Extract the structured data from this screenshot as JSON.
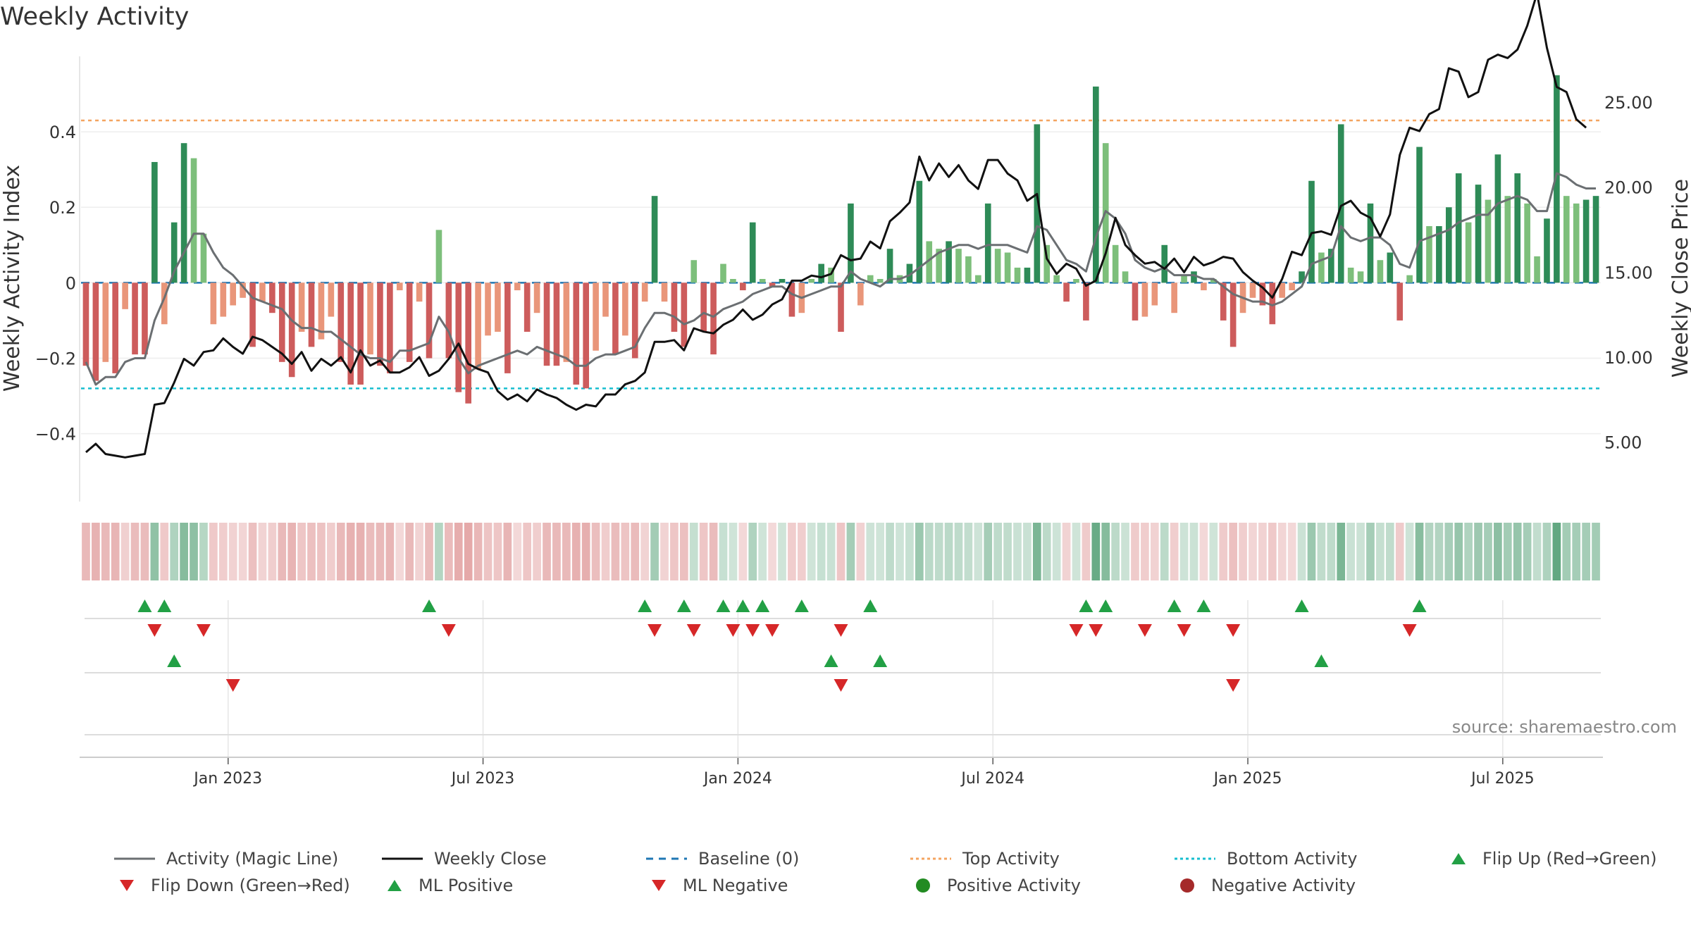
{
  "title": "Weekly Activity",
  "source_text": "source: sharemaestro.com",
  "colors": {
    "pos_strong": "#2e8b57",
    "pos_light": "#7dbf7b",
    "neg_strong": "#cd5c5c",
    "neg_light": "#e9967a",
    "magic_line": "#6b6f72",
    "close": "#111111",
    "baseline": "#1f77b4",
    "top": "#f4a460",
    "bottom": "#17becf",
    "flip_up": "#22a045",
    "flip_down": "#d62728",
    "positive": "#228b22",
    "negative": "#a52a2a"
  },
  "legend": [
    {
      "name": "legend-activity-magic-line",
      "label": "Activity (Magic Line)",
      "kind": "line",
      "color": "#6b6f72",
      "dash": ""
    },
    {
      "name": "legend-weekly-close",
      "label": "Weekly Close",
      "kind": "line",
      "color": "#111111",
      "dash": ""
    },
    {
      "name": "legend-baseline",
      "label": "Baseline (0)",
      "kind": "line",
      "color": "#1f77b4",
      "dash": "10,8"
    },
    {
      "name": "legend-top-activity",
      "label": "Top Activity",
      "kind": "line",
      "color": "#f4a460",
      "dash": "4,4"
    },
    {
      "name": "legend-bottom-activity",
      "label": "Bottom Activity",
      "kind": "line",
      "color": "#17becf",
      "dash": "4,4"
    },
    {
      "name": "legend-flip-up",
      "label": "Flip Up (Red→Green)",
      "kind": "tri-up",
      "color": "#22a045",
      "dash": ""
    },
    {
      "name": "legend-flip-down",
      "label": "Flip Down (Green→Red)",
      "kind": "tri-down",
      "color": "#d62728",
      "dash": ""
    },
    {
      "name": "legend-ml-positive",
      "label": "ML Positive",
      "kind": "tri-up",
      "color": "#22a045",
      "dash": ""
    },
    {
      "name": "legend-ml-negative",
      "label": "ML Negative",
      "kind": "tri-down",
      "color": "#d62728",
      "dash": ""
    },
    {
      "name": "legend-positive-activity",
      "label": "Positive Activity",
      "kind": "dot",
      "color": "#228b22",
      "dash": ""
    },
    {
      "name": "legend-negative-activity",
      "label": "Negative Activity",
      "kind": "dot",
      "color": "#a52a2a",
      "dash": ""
    }
  ],
  "chart_data": {
    "type": "bar",
    "title": "Weekly Activity",
    "ylabel": "Weekly Activity Index",
    "ylabel_right": "Weekly Close Price",
    "ylim": [
      -0.58,
      0.6
    ],
    "ylim_right": [
      1.5,
      27.7
    ],
    "yticks": [
      -0.4,
      -0.2,
      0,
      0.2,
      0.4
    ],
    "ytick_labels": [
      "−0.4",
      "−0.2",
      "0",
      "0.2",
      "0.4"
    ],
    "yticks_right": [
      5,
      10,
      15,
      20,
      25
    ],
    "ytick_labels_right": [
      "5.00",
      "10.00",
      "15.00",
      "20.00",
      "25.00"
    ],
    "top_activity": 0.43,
    "bottom_activity": -0.28,
    "x_start_week": 0,
    "x_end_week": 153,
    "x_ticks": [
      {
        "week": 14.5,
        "label": "Jan 2023"
      },
      {
        "week": 40.5,
        "label": "Jul 2023"
      },
      {
        "week": 66.5,
        "label": "Jan 2024"
      },
      {
        "week": 92.5,
        "label": "Jul 2024"
      },
      {
        "week": 118.5,
        "label": "Jan 2025"
      },
      {
        "week": 144.5,
        "label": "Jul 2025"
      }
    ],
    "activity": [
      -0.22,
      -0.26,
      -0.21,
      -0.24,
      -0.07,
      -0.19,
      -0.19,
      0.32,
      -0.11,
      0.16,
      0.37,
      0.33,
      0.13,
      -0.11,
      -0.09,
      -0.06,
      -0.04,
      -0.17,
      -0.05,
      -0.08,
      -0.21,
      -0.25,
      -0.13,
      -0.17,
      -0.15,
      -0.09,
      -0.21,
      -0.27,
      -0.27,
      -0.19,
      -0.22,
      -0.24,
      -0.02,
      -0.21,
      -0.05,
      -0.2,
      0.14,
      -0.2,
      -0.29,
      -0.32,
      -0.23,
      -0.14,
      -0.13,
      -0.24,
      -0.02,
      -0.13,
      -0.08,
      -0.22,
      -0.22,
      -0.21,
      -0.27,
      -0.28,
      -0.18,
      -0.09,
      -0.19,
      -0.14,
      -0.2,
      -0.05,
      0.23,
      -0.05,
      -0.13,
      -0.17,
      0.06,
      -0.13,
      -0.19,
      0.05,
      0.01,
      -0.02,
      0.16,
      0.01,
      -0.01,
      0.01,
      -0.09,
      -0.08,
      0.01,
      0.05,
      0.04,
      -0.13,
      0.21,
      -0.06,
      0.02,
      0.01,
      0.09,
      0.02,
      0.05,
      0.27,
      0.11,
      0.09,
      0.11,
      0.09,
      0.07,
      0.02,
      0.21,
      0.09,
      0.08,
      0.04,
      0.04,
      0.42,
      0.1,
      0.02,
      -0.05,
      0.01,
      -0.1,
      0.52,
      0.37,
      0.1,
      0.03,
      -0.1,
      -0.09,
      -0.06,
      0.1,
      -0.08,
      0.02,
      0.03,
      -0.02,
      0.01,
      -0.1,
      -0.17,
      -0.08,
      -0.04,
      -0.06,
      -0.11,
      -0.04,
      -0.02,
      0.03,
      0.27,
      0.08,
      0.09,
      0.42,
      0.04,
      0.03,
      0.21,
      0.06,
      0.08,
      -0.1,
      0.02,
      0.36,
      0.15,
      0.15,
      0.2,
      0.29,
      0.16,
      0.26,
      0.22,
      0.34,
      0.23,
      0.29,
      0.21,
      0.07,
      0.17,
      0.55,
      0.23,
      0.21,
      0.22,
      0.23
    ],
    "magic_line": [
      -0.21,
      -0.27,
      -0.25,
      -0.25,
      -0.21,
      -0.2,
      -0.2,
      -0.1,
      -0.04,
      0.03,
      0.08,
      0.13,
      0.13,
      0.08,
      0.04,
      0.02,
      -0.01,
      -0.04,
      -0.05,
      -0.06,
      -0.07,
      -0.1,
      -0.12,
      -0.12,
      -0.13,
      -0.13,
      -0.15,
      -0.17,
      -0.19,
      -0.2,
      -0.2,
      -0.21,
      -0.18,
      -0.18,
      -0.17,
      -0.16,
      -0.09,
      -0.13,
      -0.2,
      -0.24,
      -0.22,
      -0.21,
      -0.2,
      -0.19,
      -0.18,
      -0.19,
      -0.17,
      -0.18,
      -0.19,
      -0.2,
      -0.22,
      -0.22,
      -0.2,
      -0.19,
      -0.19,
      -0.18,
      -0.17,
      -0.12,
      -0.08,
      -0.08,
      -0.09,
      -0.11,
      -0.1,
      -0.08,
      -0.09,
      -0.07,
      -0.06,
      -0.05,
      -0.03,
      -0.02,
      -0.01,
      -0.01,
      -0.03,
      -0.04,
      -0.03,
      -0.02,
      -0.01,
      -0.01,
      0.03,
      0.01,
      0.0,
      -0.01,
      0.01,
      0.01,
      0.02,
      0.04,
      0.06,
      0.08,
      0.09,
      0.1,
      0.1,
      0.09,
      0.1,
      0.1,
      0.1,
      0.09,
      0.08,
      0.15,
      0.14,
      0.1,
      0.06,
      0.05,
      0.03,
      0.12,
      0.19,
      0.17,
      0.13,
      0.06,
      0.04,
      0.03,
      0.04,
      0.02,
      0.02,
      0.02,
      0.01,
      0.01,
      -0.01,
      -0.03,
      -0.04,
      -0.05,
      -0.05,
      -0.06,
      -0.05,
      -0.03,
      -0.01,
      0.05,
      0.06,
      0.07,
      0.15,
      0.12,
      0.11,
      0.12,
      0.12,
      0.1,
      0.05,
      0.04,
      0.11,
      0.12,
      0.13,
      0.14,
      0.16,
      0.17,
      0.18,
      0.18,
      0.21,
      0.22,
      0.23,
      0.22,
      0.19,
      0.19,
      0.29,
      0.28,
      0.26,
      0.25,
      0.25
    ],
    "close": [
      4.4,
      4.9,
      4.3,
      4.2,
      4.1,
      4.2,
      4.3,
      7.2,
      7.3,
      8.5,
      9.9,
      9.5,
      10.3,
      10.4,
      11.1,
      10.6,
      10.2,
      11.2,
      11.0,
      10.6,
      10.2,
      9.6,
      10.3,
      9.2,
      9.9,
      9.5,
      10.0,
      9.1,
      10.4,
      9.5,
      9.8,
      9.1,
      9.1,
      9.4,
      10.0,
      8.9,
      9.2,
      9.9,
      10.8,
      9.6,
      9.3,
      9.1,
      8.0,
      7.5,
      7.8,
      7.4,
      8.1,
      7.8,
      7.6,
      7.2,
      6.9,
      7.2,
      7.1,
      7.8,
      7.8,
      8.4,
      8.6,
      9.1,
      10.9,
      10.9,
      11.0,
      10.4,
      11.7,
      11.5,
      11.4,
      11.9,
      12.2,
      12.8,
      12.2,
      12.5,
      13.1,
      13.4,
      14.5,
      14.5,
      14.8,
      14.7,
      14.9,
      16.0,
      15.7,
      15.8,
      16.8,
      16.4,
      18.0,
      18.5,
      19.1,
      21.8,
      20.4,
      21.4,
      20.6,
      21.3,
      20.4,
      19.9,
      21.6,
      21.6,
      20.8,
      20.4,
      19.2,
      19.6,
      15.8,
      14.9,
      15.5,
      15.2,
      14.2,
      14.5,
      16.1,
      18.2,
      16.6,
      16.0,
      15.5,
      15.6,
      15.2,
      15.8,
      15.0,
      15.9,
      15.4,
      15.6,
      15.9,
      15.8,
      15.0,
      14.5,
      14.1,
      13.5,
      14.6,
      16.2,
      16.0,
      17.3,
      17.4,
      17.2,
      18.9,
      19.2,
      18.5,
      18.2,
      17.1,
      18.4,
      21.9,
      23.5,
      23.3,
      24.3,
      24.6,
      27.0,
      26.8,
      25.3,
      25.6,
      27.5,
      27.8,
      27.6,
      28.1,
      29.5,
      31.4,
      28.2,
      25.9,
      25.6,
      24.0,
      23.5
    ],
    "flip_up_weeks": [
      6,
      8,
      35,
      57,
      61,
      65,
      67,
      69,
      73,
      80,
      102,
      104,
      111,
      114,
      124,
      136
    ],
    "flip_down_weeks": [
      7,
      12,
      37,
      58,
      62,
      66,
      68,
      70,
      77,
      101,
      103,
      108,
      112,
      117,
      135
    ],
    "ml_positive_weeks": [
      9,
      76,
      81,
      126
    ],
    "ml_negative_weeks": [
      15,
      77,
      117
    ]
  }
}
